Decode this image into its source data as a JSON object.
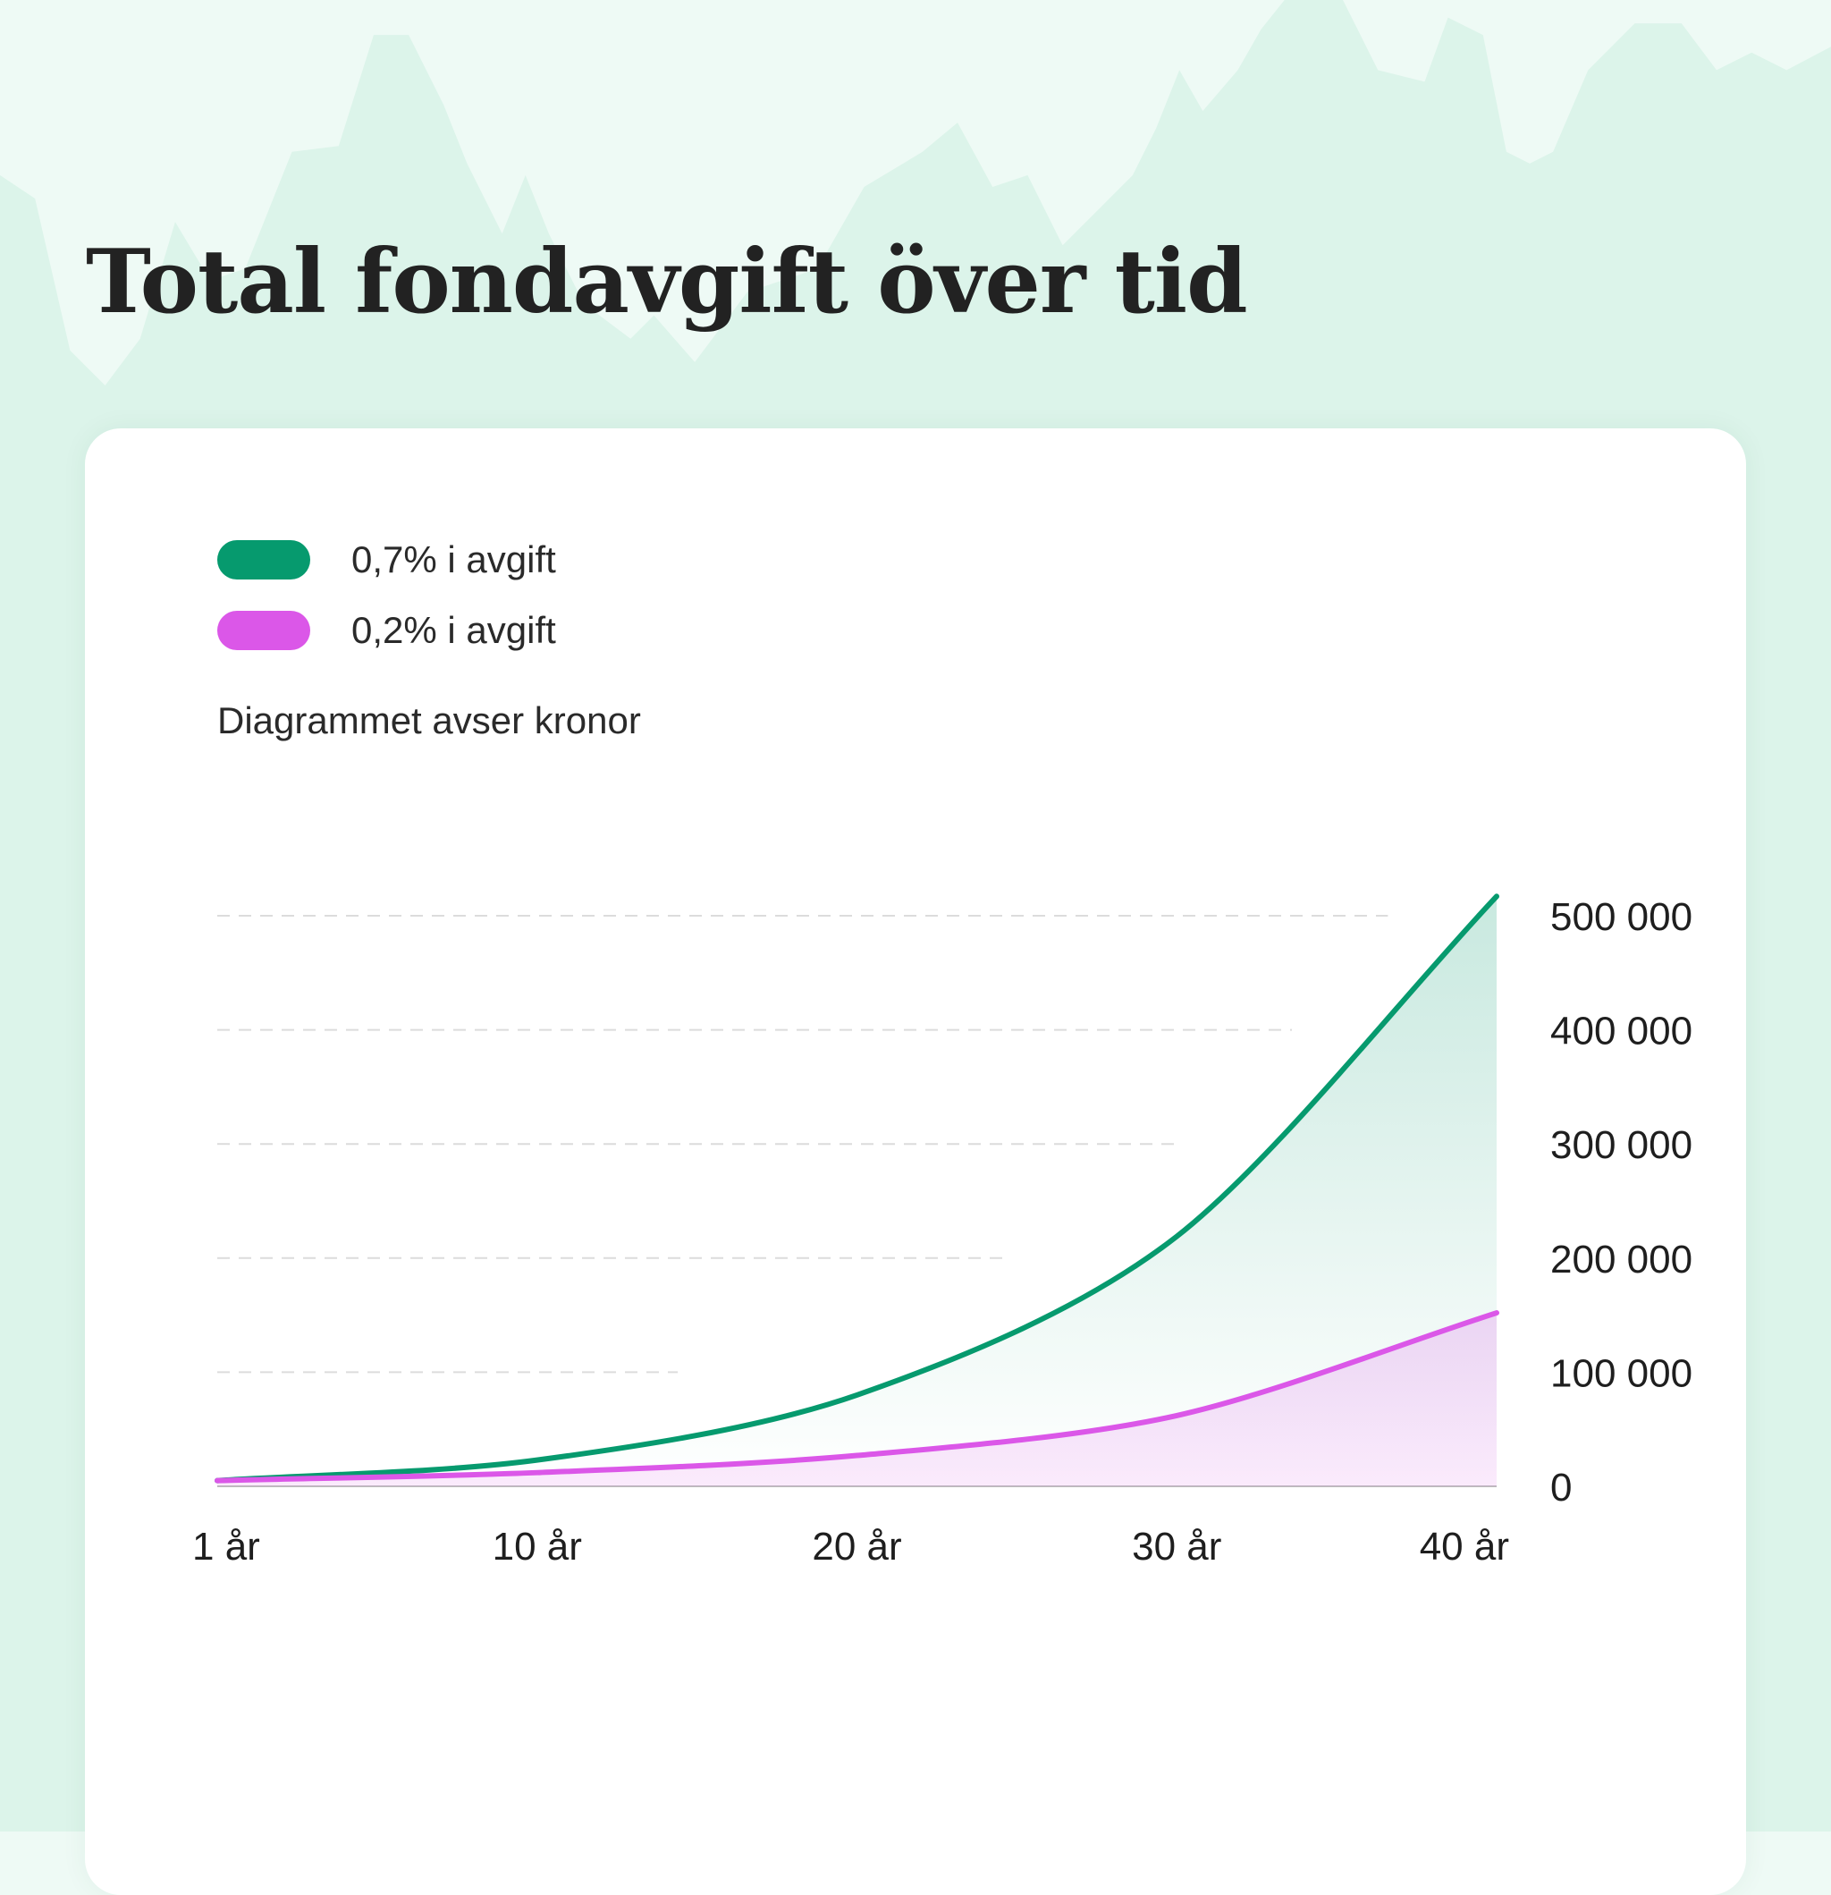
{
  "title": "Total fondavgift över tid",
  "legend": [
    {
      "label": "0,7% i avgift",
      "color": "#069a6e"
    },
    {
      "label": "0,2% i avgift",
      "color": "#db57e8"
    }
  ],
  "note": "Diagrammet avser kronor",
  "colors": {
    "background": "#eefaf5",
    "background_mountains": "#dcf4ea",
    "card": "#ffffff"
  },
  "chart_data": {
    "type": "area",
    "categories": [
      "1 år",
      "10 år",
      "20 år",
      "30 år",
      "40 år"
    ],
    "series": [
      {
        "name": "0,7% i avgift",
        "values": [
          5000,
          23000,
          80000,
          219000,
          517000
        ],
        "color": "#069a6e"
      },
      {
        "name": "0,2% i avgift",
        "values": [
          5000,
          12000,
          27000,
          62000,
          152000
        ],
        "color": "#db57e8"
      }
    ],
    "y_ticks": [
      {
        "value": 0,
        "label": "0"
      },
      {
        "value": 100000,
        "label": "100 000"
      },
      {
        "value": 200000,
        "label": "200 000"
      },
      {
        "value": 300000,
        "label": "300 000"
      },
      {
        "value": 400000,
        "label": "400 000"
      },
      {
        "value": 500000,
        "label": "500 000"
      }
    ],
    "ylim": [
      0,
      500000
    ],
    "y_axis_position": "right",
    "grid": true,
    "legend_position": "top-left"
  }
}
